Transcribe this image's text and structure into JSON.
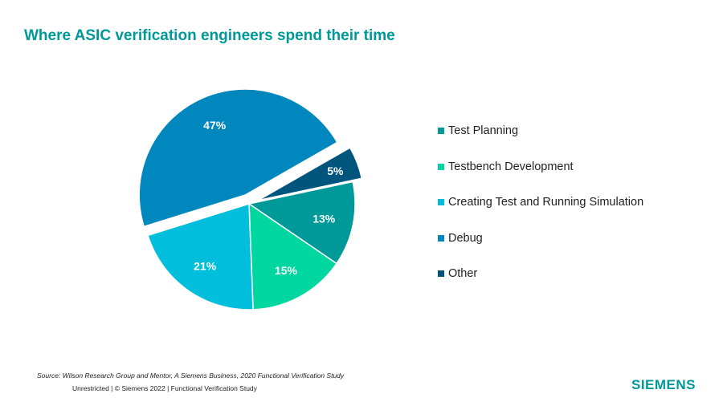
{
  "title": "Where ASIC verification engineers spend their time",
  "source": "Source:  Wilson Research Group and Mentor,  A Siemens Business, 2020 Functional Verification Study",
  "footer": "Unrestricted | © Siemens 2022 |  Functional Verification Study",
  "logo": "SIEMENS",
  "chart_data": {
    "type": "pie",
    "title": "Where ASIC verification engineers spend their time",
    "legend_position": "right",
    "categories": [
      "Test Planning",
      "Testbench Development",
      "Creating Test and Running Simulation",
      "Debug",
      "Other"
    ],
    "values": [
      13,
      15,
      21,
      47,
      5
    ],
    "labels": [
      "13%",
      "15%",
      "21%",
      "47%",
      "5%"
    ],
    "colors": [
      "#009999",
      "#00d7a0",
      "#00bedc",
      "#0087be",
      "#00557d"
    ],
    "exploded": [
      false,
      false,
      false,
      true,
      true
    ]
  }
}
